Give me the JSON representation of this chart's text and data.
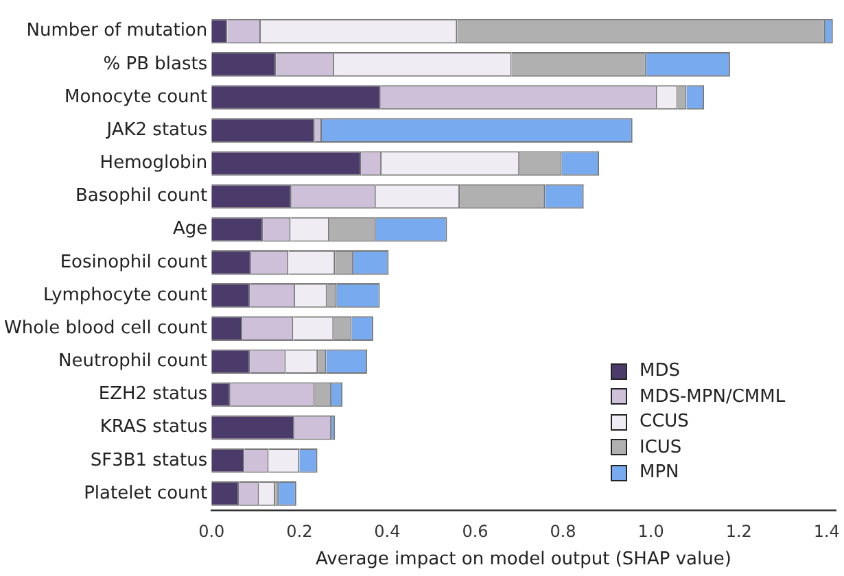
{
  "chart_data": {
    "type": "bar",
    "orientation": "horizontal",
    "stacked": true,
    "xlabel": "Average impact on model output (SHAP value)",
    "categories": [
      "Number of mutation",
      "% PB blasts",
      "Monocyte count",
      "JAK2 status",
      "Hemoglobin",
      "Basophil count",
      "Age",
      "Eosinophil count",
      "Lymphocyte count",
      "Whole blood cell count",
      "Neutrophil count",
      "EZH2 status",
      "KRAS status",
      "SF3B1 status",
      "Platelet count"
    ],
    "series": [
      {
        "name": "MDS",
        "color": "#4b3b6b",
        "values": [
          0.036,
          0.147,
          0.385,
          0.235,
          0.341,
          0.182,
          0.117,
          0.09,
          0.088,
          0.07,
          0.088,
          0.043,
          0.189,
          0.075,
          0.063
        ]
      },
      {
        "name": "MDS-MPN/CMML",
        "color": "#cfc0da",
        "values": [
          0.076,
          0.132,
          0.629,
          0.016,
          0.046,
          0.192,
          0.063,
          0.085,
          0.102,
          0.116,
          0.081,
          0.192,
          0.084,
          0.055,
          0.045
        ]
      },
      {
        "name": "CCUS",
        "color": "#efecf3",
        "values": [
          0.447,
          0.404,
          0.047,
          0,
          0.314,
          0.191,
          0.088,
          0.106,
          0.073,
          0.092,
          0.073,
          0,
          0,
          0.07,
          0.037
        ]
      },
      {
        "name": "ICUS",
        "color": "#b0b0b0",
        "values": [
          0.838,
          0.306,
          0.02,
          0,
          0.096,
          0.194,
          0.106,
          0.042,
          0.022,
          0.041,
          0.019,
          0.038,
          0,
          0,
          0.008
        ]
      },
      {
        "name": "MPN",
        "color": "#78aaf0",
        "values": [
          0.017,
          0.191,
          0.04,
          0.707,
          0.085,
          0.088,
          0.162,
          0.08,
          0.098,
          0.049,
          0.093,
          0.025,
          0.008,
          0.041,
          0.04
        ]
      }
    ],
    "xlim": [
      0,
      1.42
    ],
    "xticks": [
      {
        "value": 0,
        "label": "0.0"
      },
      0.2,
      0.4,
      0.6,
      0.8,
      {
        "value": 1,
        "label": "1.0"
      },
      1.2,
      1.4
    ],
    "grid": false,
    "legend": "bottom right"
  }
}
